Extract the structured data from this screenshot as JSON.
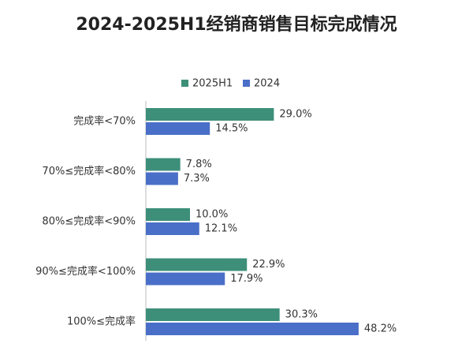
{
  "chart_data": {
    "type": "hbar",
    "title": "2024-2025H1经销商销售目标完成情况",
    "categories": [
      "完成率<70%",
      "70%≤完成率<80%",
      "80%≤完成率<90%",
      "90%≤完成率<100%",
      "100%≤完成率"
    ],
    "series": [
      {
        "name": "2025H1",
        "color": "#3d8f79",
        "values": [
          29.0,
          7.8,
          10.0,
          22.9,
          30.3
        ],
        "value_labels": [
          "29.0%",
          "7.8%",
          "10.0%",
          "22.9%",
          "30.3%"
        ]
      },
      {
        "name": "2024",
        "color": "#4a6fc8",
        "values": [
          14.5,
          7.3,
          12.1,
          17.9,
          48.2
        ],
        "value_labels": [
          "14.5%",
          "7.3%",
          "12.1%",
          "17.9%",
          "48.2%"
        ]
      }
    ],
    "legend": "top"
  }
}
